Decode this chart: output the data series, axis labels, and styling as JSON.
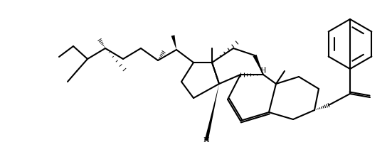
{
  "background_color": "#ffffff",
  "line_color": "#000000",
  "line_width": 1.5,
  "fig_width": 5.51,
  "fig_height": 2.21,
  "dpi": 100
}
